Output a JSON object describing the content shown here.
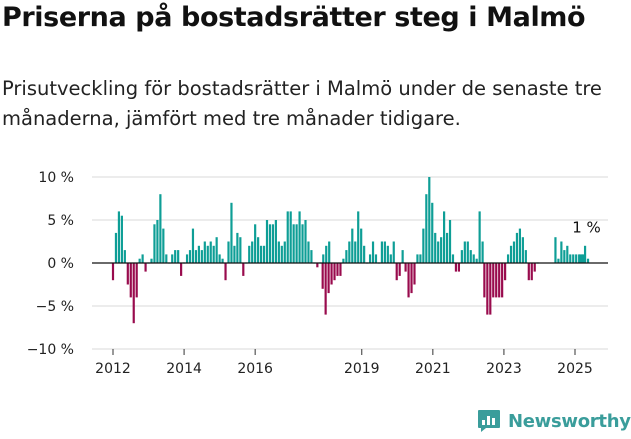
{
  "header": {
    "title": "Priserna på bostadsrätter steg i Malmö",
    "subtitle": "Prisutveckling för bostadsrätter i Malmö under de senaste tre månaderna, jämfört med tre månader tidigare."
  },
  "brand": {
    "name": "Newsworthy",
    "icon": "newsworthy-logo-icon",
    "color": "#3a9d9b"
  },
  "chart_data": {
    "type": "bar",
    "title": "",
    "xlabel": "",
    "ylabel": "",
    "ylim": [
      -10,
      10
    ],
    "y_ticks": [
      {
        "value": 10,
        "label": "10 %"
      },
      {
        "value": 5,
        "label": "5 %"
      },
      {
        "value": 0,
        "label": "0 %"
      },
      {
        "value": -5,
        "label": "−5 %"
      },
      {
        "value": -10,
        "label": "−10 %"
      }
    ],
    "x_ticks": [
      {
        "value": 2012,
        "label": "2012"
      },
      {
        "value": 2014,
        "label": "2014"
      },
      {
        "value": 2016,
        "label": "2016"
      },
      {
        "value": 2019,
        "label": "2019"
      },
      {
        "value": 2021,
        "label": "2021"
      },
      {
        "value": 2023,
        "label": "2023"
      },
      {
        "value": 2025,
        "label": "2025"
      }
    ],
    "grid": true,
    "colors": {
      "positive": "#0e9e96",
      "negative": "#990b4d",
      "grid": "#d9d9d9",
      "zero_line": "#111111"
    },
    "annotation": {
      "text": "1 %",
      "year": 2025.1,
      "value": 1
    },
    "series": [
      {
        "year": 2012.0,
        "values": [
          -2,
          3.5,
          6,
          5.5,
          1.5,
          -2.5,
          -4,
          -7,
          -4,
          0.5,
          1,
          -1,
          0,
          0.5,
          4.5,
          5,
          8,
          4,
          1,
          0,
          1,
          1.5,
          1.5,
          -1.5,
          0,
          1,
          1.5,
          4,
          1.5,
          2,
          1.5,
          2.5,
          2,
          2.5,
          2,
          3,
          1,
          0.5,
          -2,
          2.5,
          7,
          2,
          3.5,
          3,
          -1.5,
          0,
          2,
          2.5,
          4.5,
          3,
          2,
          2,
          5,
          4.5,
          4.5,
          5,
          2.5,
          2,
          2.5,
          6,
          6,
          4.5,
          4.5,
          6,
          4.5,
          5,
          2.5,
          1.5,
          0,
          -0.5,
          0,
          1,
          2,
          2.5
        ]
      },
      {
        "year": 2017.9,
        "values": [
          -3,
          -6,
          -3.5,
          -2.5,
          -2,
          -1.5,
          -1.5,
          0.5,
          1.5,
          2.5,
          4,
          2.5,
          6,
          4,
          2,
          0,
          1,
          2.5,
          1,
          0,
          2.5,
          2.5,
          2,
          1,
          2.5,
          -2,
          -1.5,
          1.5,
          -1,
          -4,
          -3.5,
          -2.5,
          1,
          1,
          4,
          8,
          10,
          7,
          3.5,
          2.5,
          3,
          6,
          3.5,
          5,
          1,
          -1,
          -1,
          1.5,
          2.5,
          2.5,
          1.5,
          1,
          0.5,
          6,
          2.5
        ]
      },
      {
        "year": 2022.45,
        "values": [
          -4,
          -6,
          -6,
          -4,
          -4,
          -4,
          -4,
          -2,
          1,
          2,
          2.5,
          3.5,
          4,
          3,
          1.5,
          -2,
          -2,
          -1,
          0
        ]
      },
      {
        "year": 2024.45,
        "values": [
          3,
          0.5,
          2.5,
          1.5,
          2,
          1,
          1,
          1,
          1,
          1,
          2,
          0.5,
          -1
        ]
      },
      {
        "year": 2025.15,
        "values": [
          1,
          1
        ]
      }
    ]
  }
}
